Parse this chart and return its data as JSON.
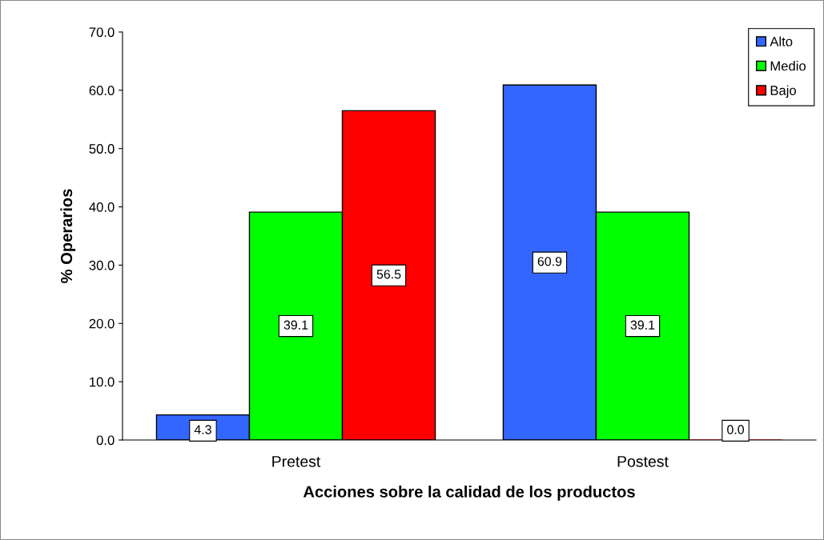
{
  "chart_data": {
    "type": "bar",
    "xlabel": "Acciones sobre la calidad de los productos",
    "ylabel": "% Operarios",
    "categories": [
      "Pretest",
      "Postest"
    ],
    "series": [
      {
        "name": "Alto",
        "color": "#3366ff",
        "values": [
          4.3,
          60.9
        ],
        "value_labels": [
          "4.3",
          "60.9"
        ]
      },
      {
        "name": "Medio",
        "color": "#00ff00",
        "values": [
          39.1,
          39.1
        ],
        "value_labels": [
          "39.1",
          "39.1"
        ]
      },
      {
        "name": "Bajo",
        "color": "#ff0000",
        "values": [
          56.5,
          0
        ],
        "value_labels": [
          "56.5",
          "0.0"
        ]
      }
    ],
    "ylim": [
      0,
      70
    ],
    "yticks": [
      {
        "value": 0,
        "label": "0.0"
      },
      {
        "value": 10,
        "label": "10.0"
      },
      {
        "value": 20,
        "label": "20.0"
      },
      {
        "value": 30,
        "label": "30.0"
      },
      {
        "value": 40,
        "label": "40.0"
      },
      {
        "value": 50,
        "label": "50.0"
      },
      {
        "value": 60,
        "label": "60.0"
      },
      {
        "value": 70,
        "label": "70.0"
      }
    ],
    "grid": false,
    "legend": "top right"
  }
}
